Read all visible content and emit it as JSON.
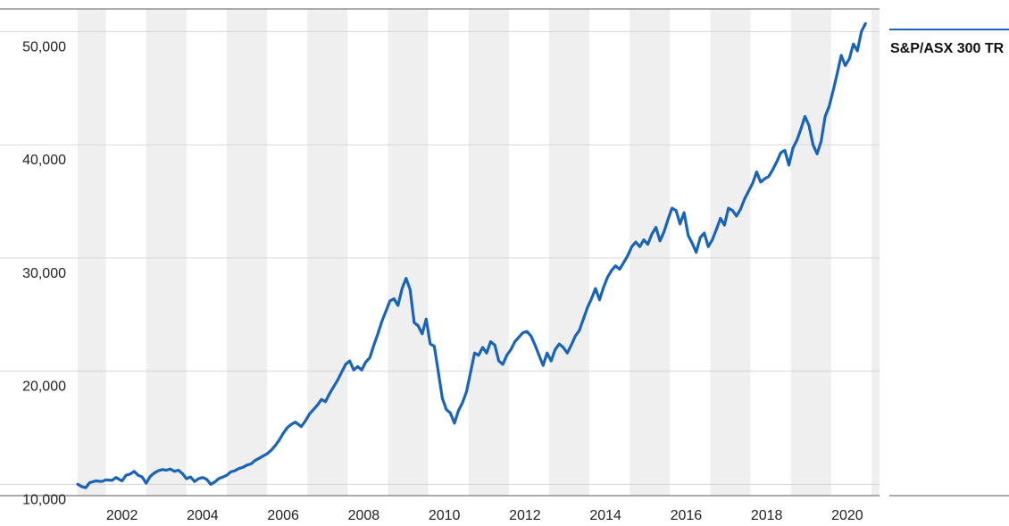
{
  "chart_data": {
    "type": "line",
    "title": "",
    "xlabel": "",
    "ylabel": "",
    "xlim": [
      2000.9,
      2020.8
    ],
    "ylim": [
      9000,
      52000
    ],
    "y_ticks": [
      {
        "value": 10000,
        "label": "10,000"
      },
      {
        "value": 20000,
        "label": "20,000"
      },
      {
        "value": 30000,
        "label": "30,000"
      },
      {
        "value": 40000,
        "label": "40,000"
      },
      {
        "value": 50000,
        "label": "50,000"
      }
    ],
    "x_ticks": [
      {
        "value": 2002,
        "label": "2002"
      },
      {
        "value": 2004,
        "label": "2004"
      },
      {
        "value": 2006,
        "label": "2006"
      },
      {
        "value": 2008,
        "label": "2008"
      },
      {
        "value": 2010,
        "label": "2010"
      },
      {
        "value": 2012,
        "label": "2012"
      },
      {
        "value": 2014,
        "label": "2014"
      },
      {
        "value": 2016,
        "label": "2016"
      },
      {
        "value": 2018,
        "label": "2018"
      },
      {
        "value": 2020,
        "label": "2020"
      }
    ],
    "shaded_year_bands": [
      [
        2000.9,
        2001.6
      ],
      [
        2002.6,
        2003.6
      ],
      [
        2004.6,
        2005.6
      ],
      [
        2006.6,
        2007.6
      ],
      [
        2008.6,
        2009.6
      ],
      [
        2010.6,
        2011.6
      ],
      [
        2012.6,
        2013.6
      ],
      [
        2014.6,
        2015.6
      ],
      [
        2016.6,
        2017.6
      ],
      [
        2018.6,
        2019.6
      ],
      [
        2020.6,
        2020.8
      ]
    ],
    "grid": true,
    "legend_placement": "right",
    "colors": {
      "line": "#1a64b8",
      "band": "#efefef",
      "grid": "#d6d6d6"
    },
    "series": [
      {
        "name": "S&P/ASX 300 TR",
        "points": [
          [
            2000.9,
            10000
          ],
          [
            2001.0,
            9800
          ],
          [
            2001.1,
            9700
          ],
          [
            2001.2,
            10150
          ],
          [
            2001.35,
            10300
          ],
          [
            2001.5,
            10250
          ],
          [
            2001.6,
            10400
          ],
          [
            2001.75,
            10350
          ],
          [
            2001.85,
            10600
          ],
          [
            2002.0,
            10300
          ],
          [
            2002.1,
            10800
          ],
          [
            2002.2,
            10900
          ],
          [
            2002.3,
            11150
          ],
          [
            2002.4,
            10800
          ],
          [
            2002.5,
            10650
          ],
          [
            2002.6,
            10100
          ],
          [
            2002.7,
            10700
          ],
          [
            2002.8,
            11000
          ],
          [
            2002.9,
            11200
          ],
          [
            2003.0,
            11300
          ],
          [
            2003.1,
            11250
          ],
          [
            2003.2,
            11350
          ],
          [
            2003.3,
            11150
          ],
          [
            2003.4,
            11250
          ],
          [
            2003.5,
            10950
          ],
          [
            2003.6,
            10500
          ],
          [
            2003.7,
            10650
          ],
          [
            2003.8,
            10250
          ],
          [
            2003.9,
            10500
          ],
          [
            2004.0,
            10600
          ],
          [
            2004.1,
            10450
          ],
          [
            2004.2,
            10000
          ],
          [
            2004.3,
            10200
          ],
          [
            2004.4,
            10500
          ],
          [
            2004.5,
            10650
          ],
          [
            2004.6,
            10800
          ],
          [
            2004.7,
            11100
          ],
          [
            2004.8,
            11200
          ],
          [
            2004.9,
            11400
          ],
          [
            2005.0,
            11500
          ],
          [
            2005.1,
            11700
          ],
          [
            2005.2,
            11800
          ],
          [
            2005.3,
            12100
          ],
          [
            2005.4,
            12300
          ],
          [
            2005.5,
            12500
          ],
          [
            2005.6,
            12700
          ],
          [
            2005.7,
            13000
          ],
          [
            2005.8,
            13400
          ],
          [
            2005.9,
            13900
          ],
          [
            2006.0,
            14500
          ],
          [
            2006.1,
            15000
          ],
          [
            2006.2,
            15300
          ],
          [
            2006.3,
            15500
          ],
          [
            2006.45,
            15100
          ],
          [
            2006.55,
            15600
          ],
          [
            2006.65,
            16200
          ],
          [
            2006.75,
            16600
          ],
          [
            2006.85,
            17000
          ],
          [
            2006.95,
            17500
          ],
          [
            2007.05,
            17300
          ],
          [
            2007.15,
            18000
          ],
          [
            2007.25,
            18600
          ],
          [
            2007.35,
            19200
          ],
          [
            2007.45,
            19900
          ],
          [
            2007.55,
            20600
          ],
          [
            2007.65,
            20900
          ],
          [
            2007.75,
            20100
          ],
          [
            2007.85,
            20400
          ],
          [
            2007.95,
            20100
          ],
          [
            2008.05,
            20800
          ],
          [
            2008.15,
            21200
          ],
          [
            2008.25,
            22300
          ],
          [
            2008.35,
            23300
          ],
          [
            2008.45,
            24400
          ],
          [
            2008.55,
            25300
          ],
          [
            2008.65,
            26200
          ],
          [
            2008.75,
            26400
          ],
          [
            2008.85,
            25800
          ],
          [
            2008.95,
            27300
          ],
          [
            2009.05,
            28200
          ],
          [
            2009.15,
            27200
          ],
          [
            2009.25,
            24300
          ],
          [
            2009.35,
            24000
          ],
          [
            2009.45,
            23300
          ],
          [
            2009.55,
            24600
          ],
          [
            2009.65,
            22400
          ],
          [
            2009.75,
            22200
          ],
          [
            2009.85,
            19900
          ],
          [
            2009.95,
            17600
          ],
          [
            2010.05,
            16600
          ],
          [
            2010.15,
            16300
          ],
          [
            2010.25,
            15400
          ],
          [
            2010.35,
            16500
          ],
          [
            2010.45,
            17200
          ],
          [
            2010.55,
            18200
          ],
          [
            2010.65,
            19900
          ],
          [
            2010.75,
            21600
          ],
          [
            2010.85,
            21400
          ],
          [
            2010.95,
            22100
          ],
          [
            2011.05,
            21600
          ],
          [
            2011.15,
            22600
          ],
          [
            2011.25,
            22300
          ],
          [
            2011.35,
            20900
          ],
          [
            2011.45,
            20600
          ],
          [
            2011.55,
            21400
          ],
          [
            2011.65,
            21900
          ],
          [
            2011.75,
            22600
          ],
          [
            2011.85,
            23000
          ],
          [
            2011.95,
            23400
          ],
          [
            2012.05,
            23500
          ],
          [
            2012.15,
            23100
          ],
          [
            2012.25,
            22300
          ],
          [
            2012.35,
            21400
          ],
          [
            2012.45,
            20500
          ],
          [
            2012.55,
            21600
          ],
          [
            2012.65,
            20900
          ],
          [
            2012.75,
            21900
          ],
          [
            2012.85,
            22400
          ],
          [
            2012.95,
            22100
          ],
          [
            2013.05,
            21600
          ],
          [
            2013.15,
            22300
          ],
          [
            2013.25,
            23100
          ],
          [
            2013.35,
            23600
          ],
          [
            2013.45,
            24600
          ],
          [
            2013.55,
            25600
          ],
          [
            2013.65,
            26400
          ],
          [
            2013.75,
            27300
          ],
          [
            2013.85,
            26300
          ],
          [
            2013.95,
            27400
          ],
          [
            2014.05,
            28300
          ],
          [
            2014.15,
            28900
          ],
          [
            2014.25,
            29300
          ],
          [
            2014.35,
            29000
          ],
          [
            2014.45,
            29600
          ],
          [
            2014.55,
            30200
          ],
          [
            2014.65,
            31000
          ],
          [
            2014.75,
            31400
          ],
          [
            2014.85,
            31000
          ],
          [
            2014.95,
            31600
          ],
          [
            2015.05,
            31200
          ],
          [
            2015.15,
            32100
          ],
          [
            2015.25,
            32700
          ],
          [
            2015.35,
            31500
          ],
          [
            2015.45,
            32300
          ],
          [
            2015.55,
            33400
          ],
          [
            2015.65,
            34400
          ],
          [
            2015.75,
            34200
          ],
          [
            2015.85,
            33000
          ],
          [
            2015.95,
            34000
          ],
          [
            2016.05,
            32000
          ],
          [
            2016.15,
            31300
          ],
          [
            2016.25,
            30500
          ],
          [
            2016.35,
            31800
          ],
          [
            2016.45,
            32200
          ],
          [
            2016.55,
            31000
          ],
          [
            2016.65,
            31600
          ],
          [
            2016.75,
            32500
          ],
          [
            2016.85,
            33500
          ],
          [
            2016.95,
            32900
          ],
          [
            2017.05,
            34400
          ],
          [
            2017.15,
            34200
          ],
          [
            2017.25,
            33700
          ],
          [
            2017.35,
            34300
          ],
          [
            2017.45,
            35200
          ],
          [
            2017.55,
            35900
          ],
          [
            2017.65,
            36600
          ],
          [
            2017.75,
            37600
          ],
          [
            2017.85,
            36700
          ],
          [
            2017.95,
            37000
          ],
          [
            2018.05,
            37200
          ],
          [
            2018.15,
            37800
          ],
          [
            2018.25,
            38500
          ],
          [
            2018.35,
            39300
          ],
          [
            2018.45,
            39500
          ],
          [
            2018.55,
            38200
          ],
          [
            2018.65,
            39700
          ],
          [
            2018.75,
            40400
          ],
          [
            2018.85,
            41400
          ],
          [
            2018.95,
            42500
          ],
          [
            2019.05,
            41700
          ],
          [
            2019.15,
            40000
          ],
          [
            2019.25,
            39200
          ],
          [
            2019.35,
            40300
          ],
          [
            2019.45,
            42500
          ],
          [
            2019.55,
            43400
          ],
          [
            2019.65,
            44800
          ],
          [
            2019.75,
            46300
          ],
          [
            2019.85,
            47900
          ],
          [
            2019.95,
            47000
          ],
          [
            2020.05,
            47600
          ],
          [
            2020.15,
            48900
          ],
          [
            2020.25,
            48300
          ],
          [
            2020.35,
            50000
          ],
          [
            2020.45,
            50700
          ]
        ]
      }
    ]
  }
}
